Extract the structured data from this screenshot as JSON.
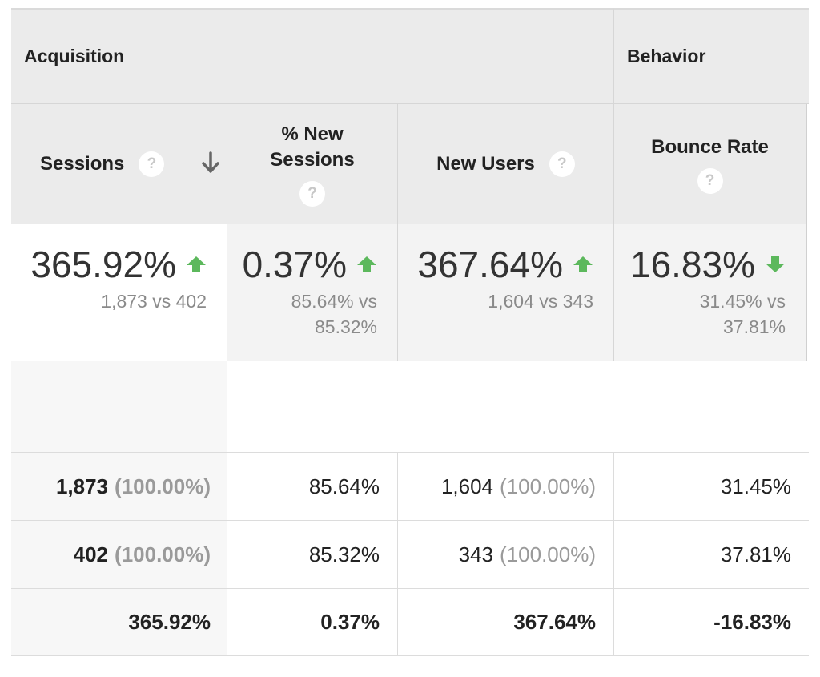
{
  "groups": {
    "acquisition": "Acquisition",
    "behavior": "Behavior"
  },
  "columns": {
    "sessions": "Sessions",
    "new_sessions_line1": "% New",
    "new_sessions_line2": "Sessions",
    "new_users": "New Users",
    "bounce_rate": "Bounce Rate",
    "help_glyph": "?"
  },
  "colors": {
    "up": "#5cb85c",
    "down": "#5cb85c",
    "header_bg": "#ebebeb"
  },
  "summary": {
    "sessions": {
      "change": "365.92%",
      "direction": "up",
      "compare": "1,873 vs 402"
    },
    "new_sessions": {
      "change": "0.37%",
      "direction": "up",
      "compare_line1": "85.64% vs",
      "compare_line2": "85.32%"
    },
    "new_users": {
      "change": "367.64%",
      "direction": "up",
      "compare": "1,604 vs 343"
    },
    "bounce_rate": {
      "change": "16.83%",
      "direction": "down",
      "compare_line1": "31.45% vs",
      "compare_line2": "37.81%"
    }
  },
  "rows": [
    {
      "sessions": "1,873",
      "sessions_pct": "(100.00%)",
      "new_sessions": "85.64%",
      "new_users": "1,604",
      "new_users_pct": "(100.00%)",
      "bounce_rate": "31.45%"
    },
    {
      "sessions": "402",
      "sessions_pct": "(100.00%)",
      "new_sessions": "85.32%",
      "new_users": "343",
      "new_users_pct": "(100.00%)",
      "bounce_rate": "37.81%"
    },
    {
      "sessions": "365.92%",
      "new_sessions": "0.37%",
      "new_users": "367.64%",
      "bounce_rate": "-16.83%"
    }
  ]
}
